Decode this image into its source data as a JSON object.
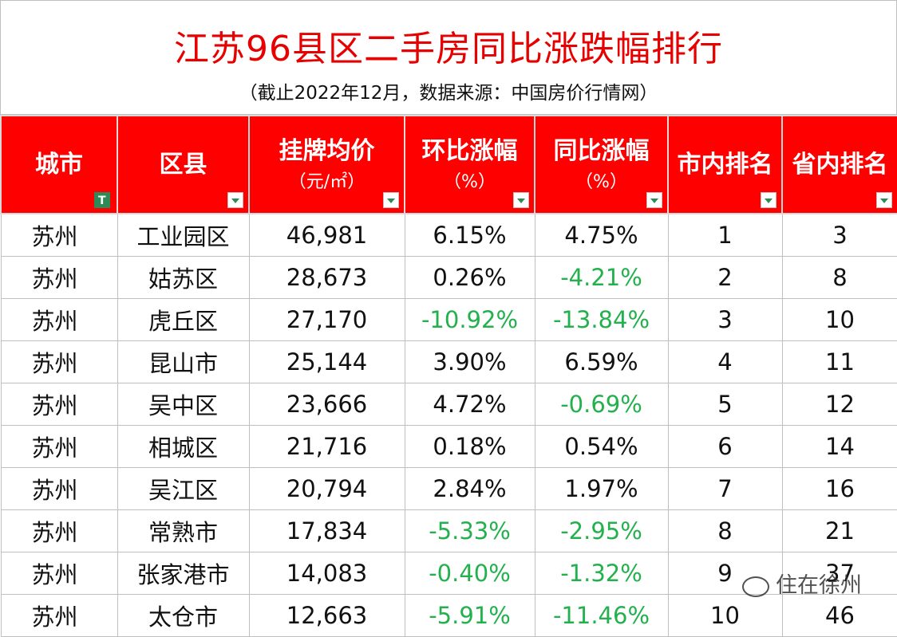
{
  "title": "江苏96县区二手房同比涨跌幅排行",
  "subtitle": "（截止2022年12月，数据来源：中国房价行情网）",
  "headers": {
    "city": "城市",
    "district": "区县",
    "price": "挂牌均价",
    "price_unit": "（元/㎡）",
    "mom": "环比涨幅",
    "mom_unit": "（%）",
    "yoy": "同比涨幅",
    "yoy_unit": "（%）",
    "city_rank": "市内排名",
    "province_rank": "省内排名"
  },
  "rows": [
    {
      "city": "苏州",
      "district": "工业园区",
      "price": "46,981",
      "mom": "6.15%",
      "yoy": "4.75%",
      "city_rank": "1",
      "province_rank": "3"
    },
    {
      "city": "苏州",
      "district": "姑苏区",
      "price": "28,673",
      "mom": "0.26%",
      "yoy": "-4.21%",
      "city_rank": "2",
      "province_rank": "8"
    },
    {
      "city": "苏州",
      "district": "虎丘区",
      "price": "27,170",
      "mom": "-10.92%",
      "yoy": "-13.84%",
      "city_rank": "3",
      "province_rank": "10"
    },
    {
      "city": "苏州",
      "district": "昆山市",
      "price": "25,144",
      "mom": "3.90%",
      "yoy": "6.59%",
      "city_rank": "4",
      "province_rank": "11"
    },
    {
      "city": "苏州",
      "district": "吴中区",
      "price": "23,666",
      "mom": "4.72%",
      "yoy": "-0.69%",
      "city_rank": "5",
      "province_rank": "12"
    },
    {
      "city": "苏州",
      "district": "相城区",
      "price": "21,716",
      "mom": "0.18%",
      "yoy": "0.54%",
      "city_rank": "6",
      "province_rank": "14"
    },
    {
      "city": "苏州",
      "district": "吴江区",
      "price": "20,794",
      "mom": "2.84%",
      "yoy": "1.97%",
      "city_rank": "7",
      "province_rank": "16"
    },
    {
      "city": "苏州",
      "district": "常熟市",
      "price": "17,834",
      "mom": "-5.33%",
      "yoy": "-2.95%",
      "city_rank": "8",
      "province_rank": "21"
    },
    {
      "city": "苏州",
      "district": "张家港市",
      "price": "14,083",
      "mom": "-0.40%",
      "yoy": "-1.32%",
      "city_rank": "9",
      "province_rank": "37"
    },
    {
      "city": "苏州",
      "district": "太仓市",
      "price": "12,663",
      "mom": "-5.91%",
      "yoy": "-11.46%",
      "city_rank": "10",
      "province_rank": "46"
    }
  ],
  "colors": {
    "header_bg": "#ff0000",
    "title": "#e60000",
    "negative": "#22b14c"
  },
  "watermark": "住在徐州"
}
